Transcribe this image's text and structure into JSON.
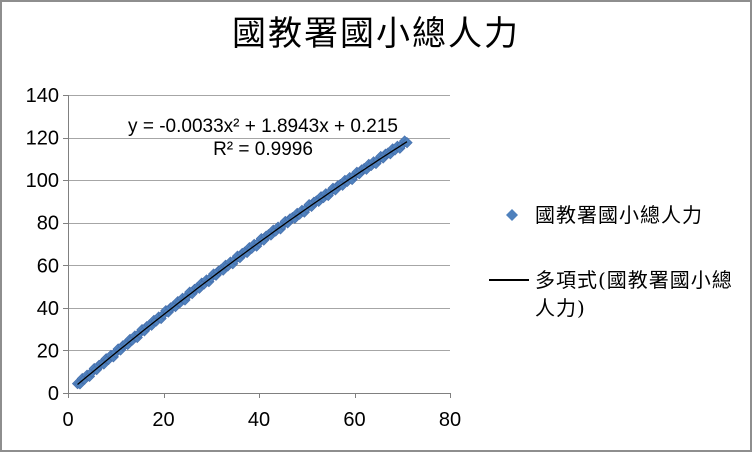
{
  "colors": {
    "series_blue": "#4F81BD",
    "series_edge": "#446CA9",
    "trendline": "#000000",
    "gridline": "#A6A6A6",
    "axis": "#808080",
    "tick_text": "#000000",
    "frame_border": "#8E8E8E"
  },
  "chart_data": {
    "type": "scatter",
    "title": "國教署國小總人力",
    "xlabel": "",
    "ylabel": "",
    "xlim": [
      0,
      80
    ],
    "ylim": [
      0,
      140
    ],
    "x_ticks": [
      0,
      20,
      40,
      60,
      80
    ],
    "y_ticks": [
      0,
      20,
      40,
      60,
      80,
      100,
      120,
      140
    ],
    "grid": "horizontal",
    "legend_position": "right",
    "series": [
      {
        "name": "國教署國小總人力",
        "marker": "diamond",
        "color": "#4F81BD",
        "points": [
          [
            2,
            4.4
          ],
          [
            2.5,
            4.3
          ],
          [
            3,
            6.8
          ],
          [
            3.5,
            6.5
          ],
          [
            4,
            8.4
          ],
          [
            4.5,
            7.8
          ],
          [
            5,
            9.8
          ],
          [
            5.5,
            11.5
          ],
          [
            6,
            11
          ],
          [
            6.5,
            13
          ],
          [
            7,
            13.7
          ],
          [
            7.5,
            13.6
          ],
          [
            8,
            16.1
          ],
          [
            8.5,
            15.8
          ],
          [
            9,
            17.7
          ],
          [
            9.5,
            17
          ],
          [
            10,
            19
          ],
          [
            10.5,
            20.7
          ],
          [
            11,
            20.2
          ],
          [
            11.5,
            22.2
          ],
          [
            12,
            22.9
          ],
          [
            12.5,
            22.8
          ],
          [
            13,
            25.2
          ],
          [
            13.5,
            24.9
          ],
          [
            14,
            26.8
          ],
          [
            14.5,
            26.1
          ],
          [
            15,
            28.1
          ],
          [
            15.5,
            29.8
          ],
          [
            16,
            29.2
          ],
          [
            16.5,
            31.2
          ],
          [
            17,
            31.9
          ],
          [
            17.5,
            31.8
          ],
          [
            18,
            34.1
          ],
          [
            18.5,
            33.8
          ],
          [
            19,
            35.7
          ],
          [
            19.5,
            35
          ],
          [
            20,
            37
          ],
          [
            20.5,
            38.7
          ],
          [
            21,
            38
          ],
          [
            21.5,
            40
          ],
          [
            22,
            40.7
          ],
          [
            22.5,
            40.6
          ],
          [
            23,
            42.9
          ],
          [
            23.5,
            42.6
          ],
          [
            24,
            44.5
          ],
          [
            24.5,
            43.7
          ],
          [
            25,
            45.7
          ],
          [
            25.5,
            47.4
          ],
          [
            26,
            46.7
          ],
          [
            26.5,
            48.7
          ],
          [
            27,
            49.4
          ],
          [
            27.5,
            49.2
          ],
          [
            28,
            51.6
          ],
          [
            28.5,
            51.2
          ],
          [
            29,
            53.1
          ],
          [
            29.5,
            52.3
          ],
          [
            30,
            54.3
          ],
          [
            30.5,
            55.9
          ],
          [
            31,
            55.3
          ],
          [
            31.5,
            57.2
          ],
          [
            32,
            57.9
          ],
          [
            32.5,
            57.7
          ],
          [
            33,
            60
          ],
          [
            33.5,
            59.7
          ],
          [
            34,
            61.5
          ],
          [
            34.5,
            60.7
          ],
          [
            35,
            62.7
          ],
          [
            35.5,
            64.3
          ],
          [
            36,
            63.6
          ],
          [
            36.5,
            65.6
          ],
          [
            37,
            66.2
          ],
          [
            37.5,
            66
          ],
          [
            38,
            68.3
          ],
          [
            38.5,
            68
          ],
          [
            39,
            69.8
          ],
          [
            39.5,
            69
          ],
          [
            40,
            70.9
          ],
          [
            40.5,
            72.5
          ],
          [
            41,
            71.8
          ],
          [
            41.5,
            73.7
          ],
          [
            42,
            74.4
          ],
          [
            42.5,
            74.2
          ],
          [
            43,
            76.5
          ],
          [
            43.5,
            76.1
          ],
          [
            44,
            77.9
          ],
          [
            44.5,
            77.1
          ],
          [
            45,
            79
          ],
          [
            45.5,
            80.6
          ],
          [
            46,
            79.9
          ],
          [
            46.5,
            81.8
          ],
          [
            47,
            82.4
          ],
          [
            47.5,
            82.1
          ],
          [
            48,
            84.4
          ],
          [
            48.5,
            84
          ],
          [
            49,
            85.8
          ],
          [
            49.5,
            85
          ],
          [
            50,
            86.9
          ],
          [
            50.5,
            88.5
          ],
          [
            51,
            87.7
          ],
          [
            51.5,
            89.6
          ],
          [
            52,
            90.2
          ],
          [
            52.5,
            90
          ],
          [
            53,
            92.2
          ],
          [
            53.5,
            91.8
          ],
          [
            54,
            93.6
          ],
          [
            54.5,
            92.8
          ],
          [
            55,
            94.6
          ],
          [
            55.5,
            96.2
          ],
          [
            56,
            95.4
          ],
          [
            56.5,
            97.3
          ],
          [
            57,
            97.9
          ],
          [
            57.5,
            97.6
          ],
          [
            58,
            99.9
          ],
          [
            58.5,
            99.4
          ],
          [
            59,
            101.2
          ],
          [
            59.5,
            100.3
          ],
          [
            60,
            102.2
          ],
          [
            60.5,
            103.7
          ],
          [
            61,
            103
          ],
          [
            61.5,
            104.8
          ],
          [
            62,
            105.4
          ],
          [
            62.5,
            105.1
          ],
          [
            63,
            107.4
          ],
          [
            63.5,
            106.9
          ],
          [
            64,
            108.6
          ],
          [
            64.5,
            107.8
          ],
          [
            65,
            109.6
          ],
          [
            65.5,
            111.1
          ],
          [
            66,
            110.4
          ],
          [
            66.5,
            112.2
          ],
          [
            67,
            112.7
          ],
          [
            67.5,
            112.4
          ],
          [
            68,
            114.7
          ],
          [
            68.5,
            114.2
          ],
          [
            69,
            115.9
          ],
          [
            69.5,
            115
          ],
          [
            70,
            116.8
          ],
          [
            70.5,
            118.4
          ],
          [
            71,
            117.6
          ]
        ]
      }
    ],
    "trendline": {
      "name": "多項式(國教署國小總人力)",
      "type": "polynomial",
      "order": 2,
      "a": -0.0033,
      "b": 1.8943,
      "c": 0.215,
      "r_squared": 0.9996,
      "equation_label": "y = -0.0033x² + 1.8943x + 0.215",
      "r2_label": "R² = 0.9996",
      "x_range": [
        2,
        71
      ],
      "color": "#000000"
    }
  }
}
